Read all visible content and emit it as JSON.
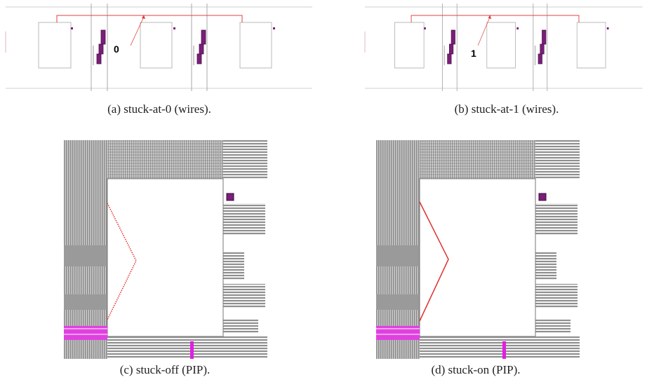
{
  "subfigures": [
    {
      "marker": "0",
      "caption": "(a) stuck-at-0 (wires)."
    },
    {
      "marker": "1",
      "caption": "(b) stuck-at-1 (wires)."
    },
    {
      "caption": "(c) stuck-off (PIP)."
    },
    {
      "caption": "(d) stuck-on (PIP)."
    }
  ]
}
